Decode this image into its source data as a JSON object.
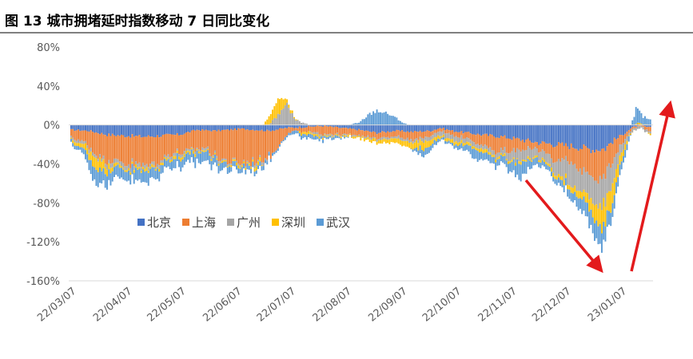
{
  "chart_data": {
    "type": "bar",
    "stacked": true,
    "title": "图 13  城市拥堵延时指数移动 7 日同比变化",
    "xlabel": "",
    "ylabel": "",
    "ylim": [
      -160,
      80
    ],
    "ytick_values": [
      80,
      40,
      0,
      -40,
      -80,
      -120,
      -160
    ],
    "ytick_labels": [
      "80%",
      "40%",
      "0%",
      "-40%",
      "-80%",
      "-120%",
      "-160%"
    ],
    "xtick_labels": [
      "22/03/07",
      "22/04/07",
      "22/05/07",
      "22/06/07",
      "22/07/07",
      "22/08/07",
      "22/09/07",
      "22/10/07",
      "22/11/07",
      "22/12/07",
      "23/01/07"
    ],
    "legend_position": "center-left",
    "start_date": "2022-03-07",
    "days": 323,
    "series": [
      {
        "name": "北京",
        "color": "#4472C4",
        "keyframes": [
          [
            0,
            -5
          ],
          [
            10,
            -6
          ],
          [
            20,
            -10
          ],
          [
            40,
            -12
          ],
          [
            60,
            -10
          ],
          [
            70,
            -5
          ],
          [
            80,
            -6
          ],
          [
            95,
            -4
          ],
          [
            110,
            -6
          ],
          [
            120,
            -3
          ],
          [
            130,
            -2
          ],
          [
            140,
            -1
          ],
          [
            150,
            -3
          ],
          [
            160,
            -5
          ],
          [
            170,
            -8
          ],
          [
            180,
            -6
          ],
          [
            190,
            -7
          ],
          [
            200,
            -6
          ],
          [
            205,
            -3
          ],
          [
            212,
            -6
          ],
          [
            220,
            -8
          ],
          [
            228,
            -10
          ],
          [
            240,
            -12
          ],
          [
            250,
            -15
          ],
          [
            260,
            -18
          ],
          [
            270,
            -20
          ],
          [
            280,
            -22
          ],
          [
            290,
            -25
          ],
          [
            297,
            -24
          ],
          [
            300,
            -18
          ],
          [
            305,
            -12
          ],
          [
            310,
            -5
          ],
          [
            315,
            0
          ],
          [
            322,
            -3
          ]
        ]
      },
      {
        "name": "上海",
        "color": "#ED7D31",
        "keyframes": [
          [
            0,
            -8
          ],
          [
            8,
            -12
          ],
          [
            12,
            -20
          ],
          [
            18,
            -25
          ],
          [
            28,
            -27
          ],
          [
            40,
            -30
          ],
          [
            50,
            -25
          ],
          [
            58,
            -18
          ],
          [
            68,
            -20
          ],
          [
            75,
            -18
          ],
          [
            82,
            -28
          ],
          [
            88,
            -33
          ],
          [
            95,
            -35
          ],
          [
            105,
            -30
          ],
          [
            112,
            -24
          ],
          [
            118,
            -10
          ],
          [
            124,
            -3
          ],
          [
            130,
            -5
          ],
          [
            140,
            -8
          ],
          [
            150,
            -7
          ],
          [
            160,
            -6
          ],
          [
            170,
            -5
          ],
          [
            180,
            -6
          ],
          [
            190,
            -8
          ],
          [
            198,
            -6
          ],
          [
            205,
            -3
          ],
          [
            212,
            -4
          ],
          [
            220,
            -6
          ],
          [
            228,
            -10
          ],
          [
            236,
            -15
          ],
          [
            244,
            -14
          ],
          [
            252,
            -10
          ],
          [
            258,
            -5
          ],
          [
            265,
            -12
          ],
          [
            270,
            -18
          ],
          [
            276,
            -14
          ],
          [
            280,
            -18
          ],
          [
            285,
            -24
          ],
          [
            290,
            -28
          ],
          [
            295,
            -30
          ],
          [
            300,
            -22
          ],
          [
            305,
            -10
          ],
          [
            310,
            -3
          ],
          [
            316,
            0
          ],
          [
            322,
            -5
          ]
        ]
      },
      {
        "name": "广州",
        "color": "#A5A5A5",
        "keyframes": [
          [
            0,
            -3
          ],
          [
            10,
            -3
          ],
          [
            20,
            -4
          ],
          [
            40,
            -4
          ],
          [
            55,
            -3
          ],
          [
            70,
            -2
          ],
          [
            90,
            -2
          ],
          [
            100,
            -2
          ],
          [
            108,
            -3
          ],
          [
            115,
            10
          ],
          [
            120,
            20
          ],
          [
            125,
            5
          ],
          [
            135,
            -2
          ],
          [
            140,
            -2
          ],
          [
            150,
            -1
          ],
          [
            160,
            -1
          ],
          [
            170,
            -2
          ],
          [
            180,
            -2
          ],
          [
            190,
            -3
          ],
          [
            200,
            -4
          ],
          [
            210,
            -5
          ],
          [
            220,
            -5
          ],
          [
            228,
            -4
          ],
          [
            240,
            -5
          ],
          [
            248,
            -12
          ],
          [
            254,
            -10
          ],
          [
            260,
            -8
          ],
          [
            266,
            -10
          ],
          [
            272,
            -15
          ],
          [
            278,
            -24
          ],
          [
            284,
            -20
          ],
          [
            290,
            -28
          ],
          [
            295,
            -30
          ],
          [
            300,
            -25
          ],
          [
            305,
            -10
          ],
          [
            310,
            -3
          ],
          [
            322,
            -2
          ]
        ]
      },
      {
        "name": "深圳",
        "color": "#FFC000",
        "keyframes": [
          [
            0,
            -2
          ],
          [
            6,
            -4
          ],
          [
            10,
            -8
          ],
          [
            14,
            -12
          ],
          [
            20,
            -6
          ],
          [
            25,
            -3
          ],
          [
            30,
            -2
          ],
          [
            40,
            -3
          ],
          [
            50,
            -2
          ],
          [
            60,
            -3
          ],
          [
            70,
            -2
          ],
          [
            80,
            -1
          ],
          [
            90,
            -2
          ],
          [
            100,
            -2
          ],
          [
            105,
            -4
          ],
          [
            108,
            4
          ],
          [
            112,
            12
          ],
          [
            116,
            16
          ],
          [
            120,
            4
          ],
          [
            128,
            -2
          ],
          [
            135,
            -2
          ],
          [
            140,
            -1
          ],
          [
            150,
            -1
          ],
          [
            160,
            -2
          ],
          [
            170,
            -3
          ],
          [
            178,
            -4
          ],
          [
            185,
            -5
          ],
          [
            190,
            -6
          ],
          [
            195,
            -8
          ],
          [
            200,
            -5
          ],
          [
            205,
            -2
          ],
          [
            210,
            -3
          ],
          [
            220,
            -3
          ],
          [
            230,
            -3
          ],
          [
            240,
            -2
          ],
          [
            250,
            -2
          ],
          [
            260,
            -2
          ],
          [
            270,
            -4
          ],
          [
            280,
            -6
          ],
          [
            285,
            -8
          ],
          [
            290,
            -15
          ],
          [
            295,
            -22
          ],
          [
            300,
            -20
          ],
          [
            305,
            -10
          ],
          [
            310,
            -2
          ],
          [
            316,
            2
          ],
          [
            322,
            -1
          ]
        ]
      },
      {
        "name": "武汉",
        "color": "#5B9BD5",
        "keyframes": [
          [
            0,
            -4
          ],
          [
            5,
            -3
          ],
          [
            10,
            -12
          ],
          [
            14,
            -15
          ],
          [
            20,
            -12
          ],
          [
            30,
            -10
          ],
          [
            40,
            -12
          ],
          [
            55,
            -8
          ],
          [
            70,
            -10
          ],
          [
            80,
            -8
          ],
          [
            90,
            -5
          ],
          [
            100,
            -5
          ],
          [
            110,
            -3
          ],
          [
            120,
            -2
          ],
          [
            130,
            -4
          ],
          [
            140,
            -3
          ],
          [
            150,
            -2
          ],
          [
            160,
            2
          ],
          [
            165,
            10
          ],
          [
            170,
            15
          ],
          [
            178,
            10
          ],
          [
            185,
            2
          ],
          [
            190,
            -2
          ],
          [
            195,
            -8
          ],
          [
            200,
            -6
          ],
          [
            205,
            -3
          ],
          [
            210,
            -2
          ],
          [
            215,
            -4
          ],
          [
            220,
            -6
          ],
          [
            225,
            -10
          ],
          [
            230,
            -8
          ],
          [
            240,
            -7
          ],
          [
            245,
            -10
          ],
          [
            250,
            -16
          ],
          [
            255,
            -8
          ],
          [
            260,
            -6
          ],
          [
            265,
            -4
          ],
          [
            270,
            -5
          ],
          [
            275,
            -8
          ],
          [
            280,
            -10
          ],
          [
            285,
            -15
          ],
          [
            290,
            -18
          ],
          [
            295,
            -18
          ],
          [
            300,
            -15
          ],
          [
            305,
            -10
          ],
          [
            310,
            -5
          ],
          [
            314,
            15
          ],
          [
            318,
            8
          ],
          [
            322,
            5
          ]
        ]
      }
    ],
    "annotations": [
      "down-arrow",
      "up-arrow"
    ]
  },
  "legend": {
    "items": [
      {
        "label": "北京",
        "color": "#4472C4"
      },
      {
        "label": "上海",
        "color": "#ED7D31"
      },
      {
        "label": "广州",
        "color": "#A5A5A5"
      },
      {
        "label": "深圳",
        "color": "#FFC000"
      },
      {
        "label": "武汉",
        "color": "#5B9BD5"
      }
    ]
  },
  "colors": {
    "arrow": "#E31A1C",
    "axis": "#D9D9D9",
    "title_rule": "#000000",
    "text": "#595959"
  }
}
